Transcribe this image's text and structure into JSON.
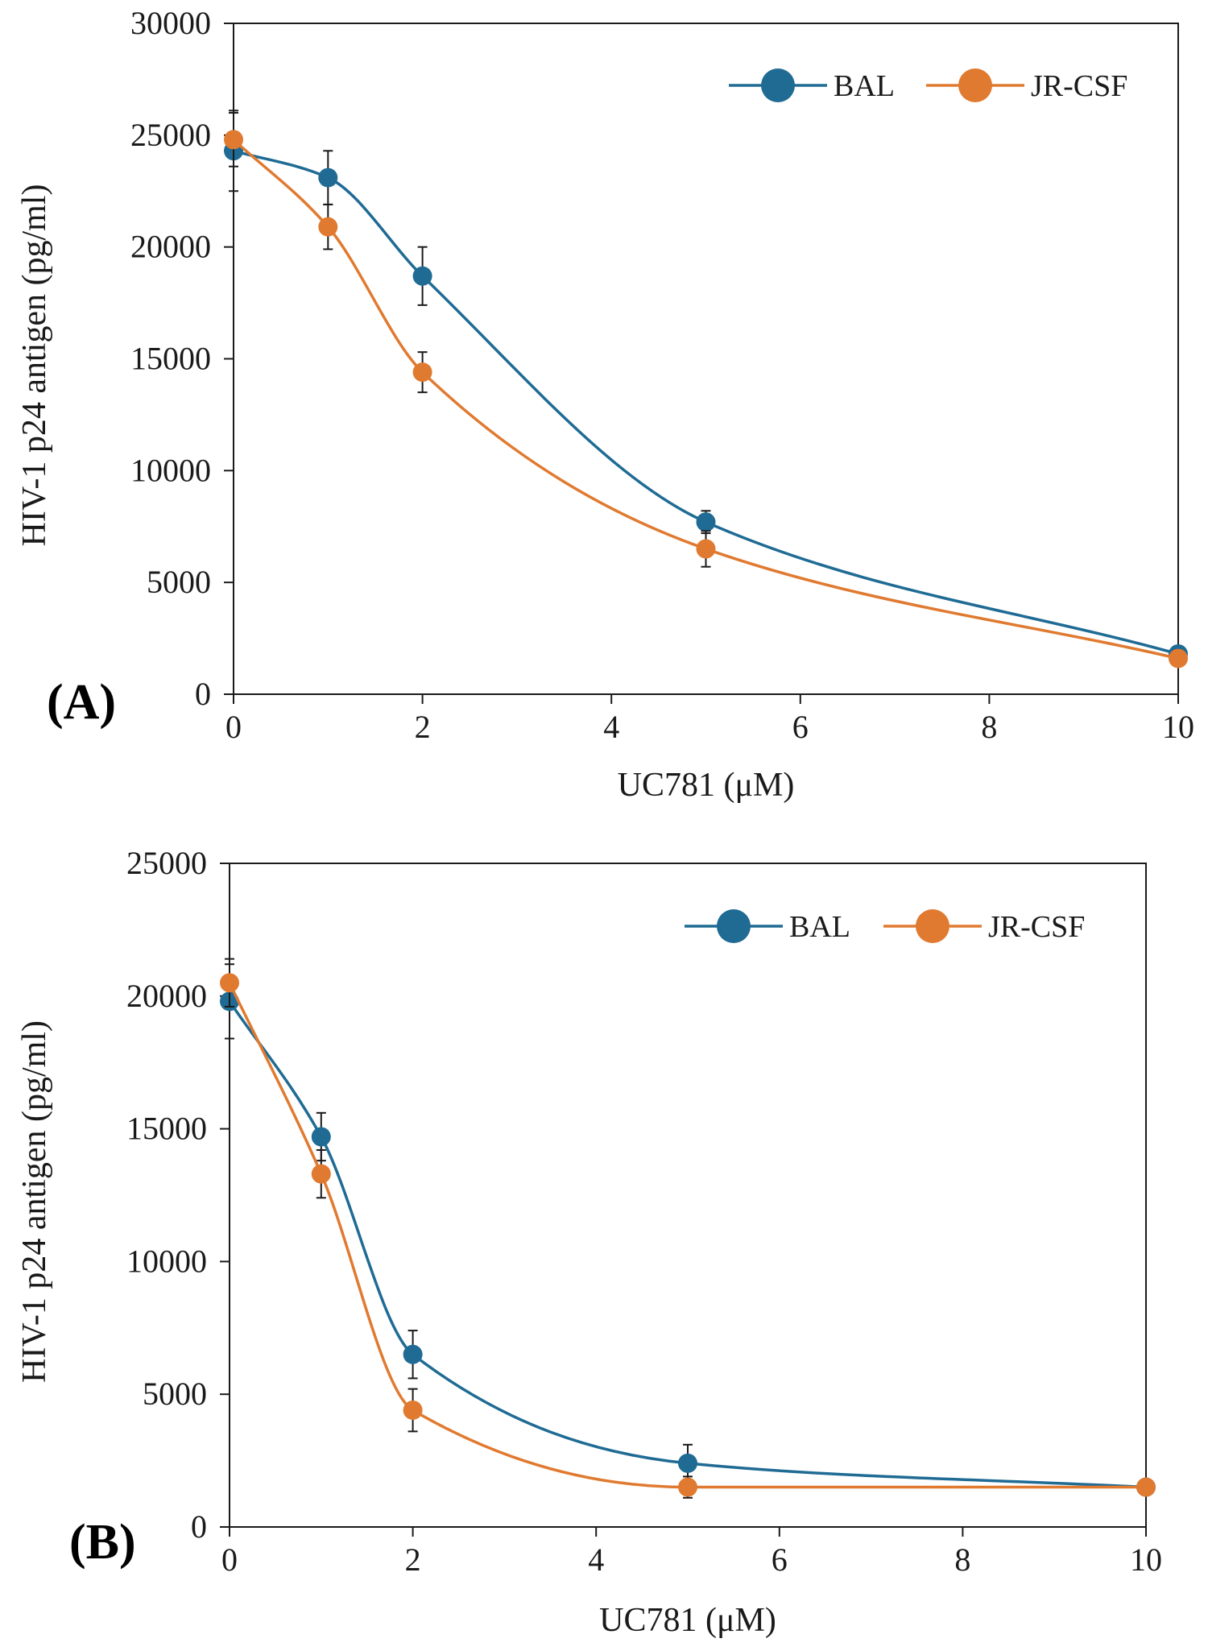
{
  "chart_data": [
    {
      "type": "line",
      "panel_label": "(A)",
      "xlabel": "UC781 (μM)",
      "ylabel": "HIV-1 p24 antigen (pg/ml)",
      "xlim": [
        0,
        10
      ],
      "ylim": [
        0,
        30000
      ],
      "xticks": [
        0,
        2,
        4,
        6,
        8,
        10
      ],
      "yticks": [
        0,
        5000,
        10000,
        15000,
        20000,
        25000,
        30000
      ],
      "x": [
        0,
        1,
        2,
        5,
        10
      ],
      "legend_position": "top-right",
      "grid": false,
      "series": [
        {
          "name": "BAL",
          "color": "#1f6b94",
          "values": [
            24300,
            23100,
            18700,
            7700,
            1800
          ],
          "errors": [
            1800,
            1200,
            1300,
            500,
            0
          ]
        },
        {
          "name": "JR-CSF",
          "color": "#e07a30",
          "values": [
            24800,
            20900,
            14400,
            6500,
            1600
          ],
          "errors": [
            1200,
            1000,
            900,
            800,
            0
          ]
        }
      ]
    },
    {
      "type": "line",
      "panel_label": "(B)",
      "xlabel": "UC781 (μM)",
      "ylabel": "HIV-1 p24 antigen (pg/ml)",
      "xlim": [
        0,
        10
      ],
      "ylim": [
        0,
        25000
      ],
      "xticks": [
        0,
        2,
        4,
        6,
        8,
        10
      ],
      "yticks": [
        0,
        5000,
        10000,
        15000,
        20000,
        25000
      ],
      "x": [
        0,
        1,
        2,
        5,
        10
      ],
      "legend_position": "top-right",
      "grid": false,
      "series": [
        {
          "name": "BAL",
          "color": "#1f6b94",
          "values": [
            19800,
            14700,
            6500,
            2400,
            1500
          ],
          "errors": [
            1400,
            900,
            900,
            700,
            0
          ]
        },
        {
          "name": "JR-CSF",
          "color": "#e07a30",
          "values": [
            20500,
            13300,
            4400,
            1500,
            1500
          ],
          "errors": [
            900,
            900,
            800,
            400,
            0
          ]
        }
      ]
    }
  ]
}
